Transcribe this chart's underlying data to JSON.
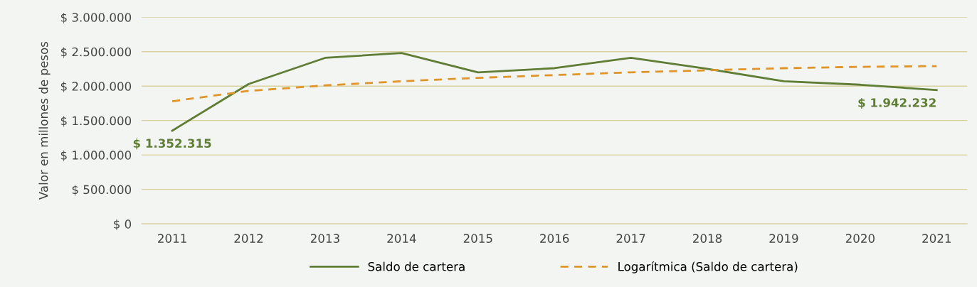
{
  "chart_data": {
    "type": "line",
    "ylabel": "Valor en millones de pesos",
    "categories": [
      "2011",
      "2012",
      "2013",
      "2014",
      "2015",
      "2016",
      "2017",
      "2018",
      "2019",
      "2020",
      "2021"
    ],
    "series": [
      {
        "name": "Saldo de cartera",
        "color": "#5f7d35",
        "line_style": "solid",
        "values": [
          1352315,
          2030000,
          2410000,
          2480000,
          2200000,
          2260000,
          2410000,
          2250000,
          2070000,
          2020000,
          1942232
        ],
        "value_labels": [
          "$ 1.352.315",
          null,
          null,
          null,
          null,
          null,
          null,
          null,
          null,
          null,
          "$ 1.942.232"
        ]
      },
      {
        "name": "Logarítmica (Saldo de cartera)",
        "color": "#e0952a",
        "line_style": "dashed",
        "values": [
          1780000,
          1930000,
          2010000,
          2070000,
          2120000,
          2160000,
          2200000,
          2230000,
          2260000,
          2280000,
          2290000
        ]
      }
    ],
    "ylim": [
      0,
      3000000
    ],
    "yticks": [
      {
        "value": 0,
        "label": "$ 0"
      },
      {
        "value": 500000,
        "label": "$ 500.000"
      },
      {
        "value": 1000000,
        "label": "$ 1.000.000"
      },
      {
        "value": 1500000,
        "label": "$ 1.500.000"
      },
      {
        "value": 2000000,
        "label": "$ 2.000.000"
      },
      {
        "value": 2500000,
        "label": "$ 2.500.000"
      },
      {
        "value": 3000000,
        "label": "$ 3.000.000"
      }
    ],
    "grid": "y",
    "legend": "bottom",
    "marker": "none"
  }
}
